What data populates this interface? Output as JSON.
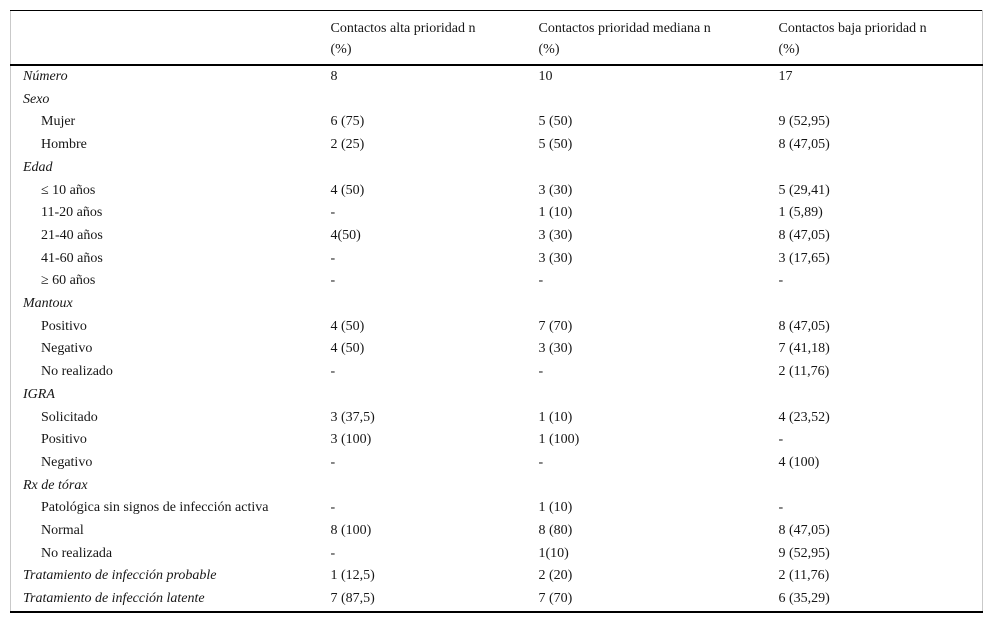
{
  "table": {
    "columns": [
      {
        "title": "",
        "subtitle": ""
      },
      {
        "title": "Contactos alta prioridad n",
        "subtitle": "(%)"
      },
      {
        "title": "Contactos prioridad mediana n",
        "subtitle": "(%)"
      },
      {
        "title": "Contactos baja prioridad n",
        "subtitle": "(%)"
      }
    ],
    "rows": [
      {
        "label": "Número",
        "kind": "group",
        "values": [
          "8",
          "10",
          "17"
        ]
      },
      {
        "label": "Sexo",
        "kind": "group",
        "values": [
          "",
          "",
          ""
        ]
      },
      {
        "label": "Mujer",
        "kind": "sub",
        "values": [
          "6 (75)",
          "5 (50)",
          "9 (52,95)"
        ]
      },
      {
        "label": "Hombre",
        "kind": "sub",
        "values": [
          "2 (25)",
          "5 (50)",
          "8 (47,05)"
        ]
      },
      {
        "label": "Edad",
        "kind": "group",
        "values": [
          "",
          "",
          ""
        ]
      },
      {
        "label": "≤ 10 años",
        "kind": "sub",
        "values": [
          "4 (50)",
          "3 (30)",
          "5 (29,41)"
        ]
      },
      {
        "label": "11-20 años",
        "kind": "sub",
        "values": [
          "-",
          "1 (10)",
          "1 (5,89)"
        ]
      },
      {
        "label": "21-40 años",
        "kind": "sub",
        "values": [
          "4(50)",
          "3 (30)",
          "8 (47,05)"
        ]
      },
      {
        "label": "41-60 años",
        "kind": "sub",
        "values": [
          "-",
          "3 (30)",
          "3 (17,65)"
        ]
      },
      {
        "label": "≥ 60 años",
        "kind": "sub",
        "values": [
          "-",
          "-",
          "-"
        ]
      },
      {
        "label": "Mantoux",
        "kind": "group",
        "values": [
          "",
          "",
          ""
        ]
      },
      {
        "label": "Positivo",
        "kind": "sub",
        "values": [
          "4 (50)",
          "7 (70)",
          "8 (47,05)"
        ]
      },
      {
        "label": "Negativo",
        "kind": "sub",
        "values": [
          "4 (50)",
          "3 (30)",
          "7 (41,18)"
        ]
      },
      {
        "label": "No realizado",
        "kind": "sub",
        "values": [
          "-",
          "-",
          "2 (11,76)"
        ]
      },
      {
        "label": "IGRA",
        "kind": "group",
        "values": [
          "",
          "",
          ""
        ]
      },
      {
        "label": "Solicitado",
        "kind": "sub",
        "values": [
          "3 (37,5)",
          "1 (10)",
          "4 (23,52)"
        ]
      },
      {
        "label": "Positivo",
        "kind": "sub",
        "values": [
          "3 (100)",
          "1 (100)",
          "-"
        ]
      },
      {
        "label": "Negativo",
        "kind": "sub",
        "values": [
          "-",
          "-",
          "4 (100)"
        ]
      },
      {
        "label": "Rx de tórax",
        "kind": "group",
        "values": [
          "",
          "",
          ""
        ]
      },
      {
        "label": "Patológica sin signos de infección activa",
        "kind": "sub",
        "values": [
          "-",
          "1 (10)",
          "-"
        ]
      },
      {
        "label": "Normal",
        "kind": "sub",
        "values": [
          "8 (100)",
          "8 (80)",
          "8 (47,05)"
        ]
      },
      {
        "label": "No realizada",
        "kind": "sub",
        "values": [
          "-",
          "1(10)",
          "9 (52,95)"
        ]
      },
      {
        "label": "Tratamiento de infección probable",
        "kind": "group",
        "values": [
          "1 (12,5)",
          "2 (20)",
          "2 (11,76)"
        ]
      },
      {
        "label": "Tratamiento de infección latente",
        "kind": "group",
        "values": [
          "7 (87,5)",
          "7 (70)",
          "6 (35,29)"
        ]
      }
    ]
  }
}
